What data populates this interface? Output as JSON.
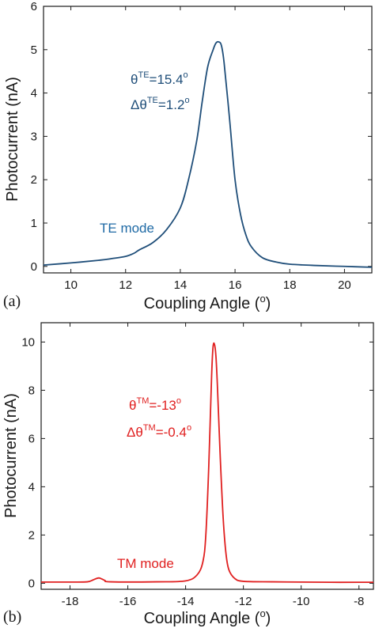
{
  "chart_data": [
    {
      "type": "line",
      "panel": "(a)",
      "color": "#1f4e79",
      "xlabel": "Coupling Angle (",
      "xlabel_sup": "o",
      "xlabel_end": ")",
      "ylabel": "Photocurrent (nA)",
      "xlim": [
        9,
        21
      ],
      "ylim": [
        -0.15,
        6
      ],
      "xticks": [
        10,
        12,
        14,
        16,
        18,
        20
      ],
      "yticks": [
        0,
        1,
        2,
        3,
        4,
        5,
        6
      ],
      "annotations": {
        "theta_pre": "θ",
        "theta_sup": "TE",
        "theta_val": "=15.4",
        "theta_deg": "o",
        "delta_pre": "Δθ",
        "delta_sup": "TE",
        "delta_val": "=1.2",
        "delta_deg": "o",
        "mode": "TE mode"
      },
      "series": [
        {
          "x": [
            9,
            10,
            11,
            11.5,
            12,
            12.3,
            12.5,
            13,
            13.5,
            14,
            14.3,
            14.6,
            14.8,
            15.0,
            15.2,
            15.3,
            15.4,
            15.5,
            15.6,
            15.8,
            16.0,
            16.2,
            16.4,
            16.6,
            17.0,
            17.5,
            18,
            19,
            20,
            21
          ],
          "y": [
            0.03,
            0.08,
            0.14,
            0.18,
            0.23,
            0.3,
            0.38,
            0.55,
            0.85,
            1.35,
            2.0,
            2.9,
            3.8,
            4.6,
            5.0,
            5.15,
            5.18,
            5.1,
            4.7,
            3.4,
            2.0,
            1.2,
            0.72,
            0.45,
            0.2,
            0.1,
            0.05,
            0.02,
            0.0,
            -0.02
          ]
        }
      ]
    },
    {
      "type": "line",
      "panel": "(b)",
      "color": "#e02020",
      "xlabel": "Coupling Angle (",
      "xlabel_sup": "o",
      "xlabel_end": ")",
      "ylabel": "Photocurrent (nA)",
      "xlim": [
        -19,
        -7.5
      ],
      "ylim": [
        -0.25,
        10.8
      ],
      "xticks": [
        -18,
        -16,
        -14,
        -12,
        -10,
        -8
      ],
      "yticks": [
        0,
        2,
        4,
        6,
        8,
        10
      ],
      "annotations": {
        "theta_pre": "θ",
        "theta_sup": "TM",
        "theta_val": "=-13",
        "theta_deg": "o",
        "delta_pre": "Δθ",
        "delta_sup": "TM",
        "delta_val": "=-0.4",
        "delta_deg": "o",
        "mode": "TM mode"
      },
      "series": [
        {
          "x": [
            -19,
            -18,
            -17.4,
            -17.2,
            -17.0,
            -16.8,
            -16.6,
            -15,
            -14,
            -13.6,
            -13.4,
            -13.3,
            -13.2,
            -13.1,
            -13.05,
            -13.0,
            -12.95,
            -12.9,
            -12.8,
            -12.7,
            -12.6,
            -12.5,
            -12.3,
            -12,
            -11,
            -10,
            -9,
            -8,
            -7.5
          ],
          "y": [
            0.05,
            0.05,
            0.06,
            0.14,
            0.22,
            0.12,
            0.06,
            0.06,
            0.1,
            0.35,
            0.9,
            2.0,
            4.8,
            8.6,
            9.8,
            9.9,
            9.4,
            8.2,
            5.2,
            2.7,
            1.2,
            0.55,
            0.2,
            0.08,
            0.06,
            0.05,
            0.04,
            0.04,
            0.04
          ]
        }
      ]
    }
  ]
}
